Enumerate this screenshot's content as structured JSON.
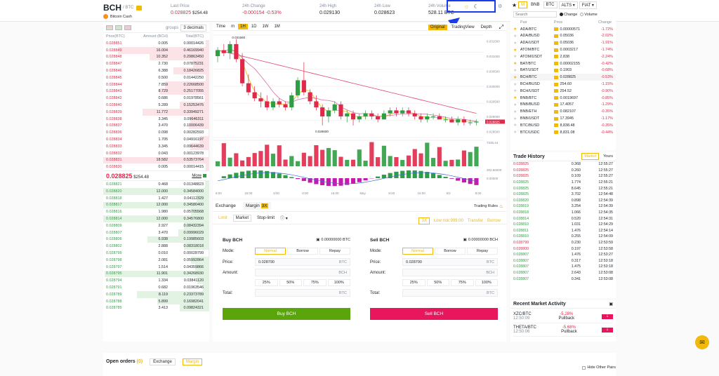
{
  "header": {
    "symbol": "BCH",
    "quote": "/ BTC",
    "name": "Bitcoin Cash",
    "last_price_label": "Last Price",
    "last_price": "0.028825",
    "last_price_usd": "$254.48",
    "change_label": "24h Change",
    "change_value": "-0.000154",
    "change_pct": "-0.53%",
    "high_label": "24h High",
    "high_value": "0.029130",
    "low_label": "24h Low",
    "low_value": "0.028623",
    "volume_label": "24h Volume",
    "volume_value": "528.11 BTC"
  },
  "orderbook": {
    "groups_label": "groups",
    "decimals": "3 decimals",
    "col_price": "Price(BTC)",
    "col_amount": "Amount (BCH)",
    "col_total": "Total(BTC)",
    "asks": [
      [
        "0.028851",
        "0.005",
        "0.00014426"
      ],
      [
        "0.028849",
        "16.004",
        "0.46169940"
      ],
      [
        "0.028848",
        "10.352",
        "0.29863450"
      ],
      [
        "0.028847",
        "2.730",
        "0.07875231"
      ],
      [
        "0.028846",
        "6.388",
        "0.18426825"
      ],
      [
        "0.028845",
        "0.500",
        "0.01442250"
      ],
      [
        "0.028844",
        "7.859",
        "0.22668500"
      ],
      [
        "0.028843",
        "8.729",
        "0.25177055"
      ],
      [
        "0.028842",
        "0.686",
        "0.01978561"
      ],
      [
        "0.028840",
        "5.289",
        "0.15253476"
      ],
      [
        "0.028839",
        "11.772",
        "0.33949271"
      ],
      [
        "0.028838",
        "3.345",
        "0.09646311"
      ],
      [
        "0.028837",
        "3.470",
        "0.10006439"
      ],
      [
        "0.028836",
        "0.098",
        "0.00282593"
      ],
      [
        "0.028834",
        "1.705",
        "0.04916197"
      ],
      [
        "0.028833",
        "3.345",
        "0.09644639"
      ],
      [
        "0.028832",
        "0.043",
        "0.00123978"
      ],
      [
        "0.028831",
        "18.582",
        "0.53573764"
      ],
      [
        "0.028830",
        "0.005",
        "0.00014415"
      ]
    ],
    "ask_depth": [
      0.03,
      0.86,
      0.56,
      0.15,
      0.34,
      0.03,
      0.42,
      0.47,
      0.04,
      0.28,
      0.63,
      0.18,
      0.19,
      0.01,
      0.09,
      0.18,
      0.01,
      1.0,
      0.03
    ],
    "mid_price": "0.028825",
    "mid_usd": "$254.48",
    "more_label": "More",
    "bids": [
      [
        "0.028821",
        "0.468",
        "0.01348823"
      ],
      [
        "0.028820",
        "12.000",
        "0.34584000"
      ],
      [
        "0.028818",
        "1.427",
        "0.04112329"
      ],
      [
        "0.028817",
        "12.000",
        "0.34580400"
      ],
      [
        "0.028816",
        "1.980",
        "0.05705568"
      ],
      [
        "0.028814",
        "12.000",
        "0.34576800"
      ],
      [
        "0.028809",
        "2.927",
        "0.08432394"
      ],
      [
        "0.028807",
        "3.470",
        "0.09996029"
      ],
      [
        "0.028806",
        "6.938",
        "0.19985603"
      ],
      [
        "0.028802",
        "2.888",
        "0.08318018"
      ],
      [
        "0.028799",
        "0.010",
        "0.00028799"
      ],
      [
        "0.028798",
        "2.081",
        "0.05992864"
      ],
      [
        "0.028797",
        "1.514",
        "0.04359866"
      ],
      [
        "0.028795",
        "11.901",
        "0.34268930"
      ],
      [
        "0.028794",
        "1.334",
        "0.03841120"
      ],
      [
        "0.028791",
        "0.682",
        "0.01963546"
      ],
      [
        "0.028789",
        "8.119",
        "0.23373789"
      ],
      [
        "0.028788",
        "5.899",
        "0.16982041"
      ],
      [
        "0.028785",
        "3.413",
        "0.09824321"
      ]
    ],
    "bid_depth": [
      0.04,
      1.0,
      0.12,
      1.0,
      0.17,
      1.0,
      0.24,
      0.29,
      0.58,
      0.24,
      0.01,
      0.17,
      0.13,
      0.99,
      0.11,
      0.06,
      0.68,
      0.49,
      0.28
    ]
  },
  "chart": {
    "toolbar": [
      "Time",
      "m",
      "1H",
      "1D",
      "1W",
      "1M"
    ],
    "active_interval": "1H",
    "views": [
      "Original",
      "TradingView",
      "Depth"
    ],
    "price_axis": [
      "0.031500",
      "0.031000",
      "0.030500",
      "0.030000",
      "0.029500",
      "0.029000",
      "0.028500"
    ],
    "vol_axis": [
      "7336.44"
    ],
    "macd_axis": [
      "302.56000",
      "0.00000"
    ],
    "x_axis": [
      "8:00",
      "16:00",
      "4/30",
      "8:00",
      "16:00",
      "May",
      "8:00",
      "16:00",
      "5/2",
      "8:00"
    ],
    "high_label": "0.031560",
    "low_label": "0.028600",
    "last_label": "0.028825"
  },
  "chart_data": {
    "type": "candlestick",
    "ylim": [
      0.0283,
      0.0317
    ],
    "candles": [
      [
        0.031,
        0.0313,
        0.0308,
        0.0312
      ],
      [
        0.0312,
        0.0314,
        0.031,
        0.0311
      ],
      [
        0.0311,
        0.0315,
        0.0309,
        0.0314
      ],
      [
        0.0314,
        0.03156,
        0.0308,
        0.0309
      ],
      [
        0.0309,
        0.0311,
        0.03,
        0.0301
      ],
      [
        0.0301,
        0.0304,
        0.0297,
        0.0298
      ],
      [
        0.0298,
        0.03,
        0.0295,
        0.0296
      ],
      [
        0.0296,
        0.0298,
        0.0293,
        0.0295
      ],
      [
        0.0295,
        0.0297,
        0.0292,
        0.0293
      ],
      [
        0.0293,
        0.0296,
        0.0292,
        0.0295
      ],
      [
        0.0295,
        0.0296,
        0.0293,
        0.0294
      ],
      [
        0.0294,
        0.0295,
        0.0292,
        0.0293
      ],
      [
        0.0293,
        0.0298,
        0.0292,
        0.0297
      ],
      [
        0.0297,
        0.0303,
        0.0296,
        0.0302
      ],
      [
        0.0302,
        0.0308,
        0.0297,
        0.0298
      ],
      [
        0.0298,
        0.0299,
        0.0294,
        0.0295
      ],
      [
        0.0295,
        0.0297,
        0.0292,
        0.0293
      ],
      [
        0.0293,
        0.0294,
        0.0287,
        0.029
      ],
      [
        0.029,
        0.0293,
        0.0288,
        0.0292
      ],
      [
        0.0292,
        0.0295,
        0.0291,
        0.0294
      ],
      [
        0.0294,
        0.0295,
        0.0289,
        0.029
      ],
      [
        0.029,
        0.0292,
        0.0288,
        0.0291
      ],
      [
        0.0291,
        0.0292,
        0.0287,
        0.0289
      ],
      [
        0.0289,
        0.0291,
        0.0288,
        0.029
      ],
      [
        0.029,
        0.0292,
        0.0289,
        0.0291
      ],
      [
        0.0291,
        0.0292,
        0.0289,
        0.029
      ],
      [
        0.029,
        0.0291,
        0.0288,
        0.0289
      ],
      [
        0.0289,
        0.0292,
        0.0289,
        0.0291
      ],
      [
        0.0291,
        0.0293,
        0.029,
        0.0292
      ],
      [
        0.0292,
        0.0293,
        0.029,
        0.0291
      ],
      [
        0.0291,
        0.0293,
        0.029,
        0.0292
      ],
      [
        0.0292,
        0.0293,
        0.029,
        0.0291
      ],
      [
        0.0291,
        0.0292,
        0.0289,
        0.029
      ],
      [
        0.029,
        0.0291,
        0.0288,
        0.0289
      ],
      [
        0.0289,
        0.0291,
        0.0288,
        0.029
      ],
      [
        0.029,
        0.0291,
        0.0289,
        0.029
      ],
      [
        0.029,
        0.0291,
        0.0289,
        0.0289
      ],
      [
        0.0289,
        0.029,
        0.0288,
        0.0289
      ],
      [
        0.0289,
        0.029,
        0.0288,
        0.0288
      ],
      [
        0.0288,
        0.029,
        0.0287,
        0.0289
      ],
      [
        0.0289,
        0.029,
        0.0287,
        0.0288
      ],
      [
        0.0288,
        0.0289,
        0.0287,
        0.0288
      ],
      [
        0.0288,
        0.0289,
        0.0287,
        0.02883
      ]
    ]
  },
  "form": {
    "tab_exchange": "Exchange",
    "tab_margin": "Margin",
    "margin_badge": "3X",
    "trading_rules": "Trading Rules",
    "order_types": [
      "Limit",
      "Market",
      "Stop-limit"
    ],
    "leverage": "3X",
    "low_risk": "Low risk:999.00",
    "transfer": "Transfer",
    "borrow": "Borrow",
    "buy": {
      "title": "Buy BCH",
      "balance": "0.00000000 BTC",
      "mode_label": "Mode:",
      "modes": [
        "Normal",
        "Borrow",
        "Repay"
      ],
      "price_label": "Price:",
      "price": "0.028790",
      "price_unit": "BTC",
      "amount_label": "Amount:",
      "amount_unit": "BCH",
      "pcts": [
        "25%",
        "50%",
        "75%",
        "100%"
      ],
      "total_label": "Total:",
      "total_unit": "BTC",
      "button": "Buy BCH"
    },
    "sell": {
      "title": "Sell BCH",
      "balance": "0.00000000 BCH",
      "mode_label": "Mode:",
      "modes": [
        "Normal",
        "Borrow",
        "Repay"
      ],
      "price_label": "Price:",
      "price": "0.028790",
      "price_unit": "BTC",
      "amount_label": "Amount:",
      "amount_unit": "BCH",
      "pcts": [
        "25%",
        "50%",
        "75%",
        "100%"
      ],
      "total_label": "Total:",
      "total_unit": "BTC",
      "button": "Sell BCH"
    }
  },
  "markets": {
    "tabs": [
      "M",
      "BNB",
      "BTC",
      "ALTS",
      "FIAT"
    ],
    "search_placeholder": "Search",
    "change_label": "Change",
    "volume_label": "Volume",
    "col_pair": "Pair",
    "col_price": "Price",
    "col_change": "Change",
    "rows": [
      [
        "ADA/BTC",
        "0.00000571",
        "-1.72%",
        true
      ],
      [
        "ADA/BUSD",
        "0.05036",
        "-2.02%",
        false
      ],
      [
        "ADA/USDT",
        "0.05036",
        "-1.91%",
        false
      ],
      [
        "ATOM/BTC",
        "0.0003217",
        "-1.74%",
        true
      ],
      [
        "ATOM/USDT",
        "2.838",
        "-2.24%",
        false
      ],
      [
        "BAT/BTC",
        "0.00002155",
        "-0.42%",
        true
      ],
      [
        "BAT/USDT",
        "0.1903",
        "-0.68%",
        false
      ],
      [
        "BCH/BTC",
        "0.028825",
        "-0.53%",
        true
      ],
      [
        "BCH/BUSD",
        "254.60",
        "-1.15%",
        false
      ],
      [
        "BCH/USDT",
        "254.52",
        "-0.90%",
        false
      ],
      [
        "BNB/BTC",
        "0.0019697",
        "-0.85%",
        true
      ],
      [
        "BNB/BUSD",
        "17.4057",
        "-1.29%",
        false
      ],
      [
        "BNB/ETH",
        "0.082107",
        "-0.35%",
        false
      ],
      [
        "BNB/USDT",
        "17.3945",
        "-1.17%",
        false
      ],
      [
        "BTC/BUSD",
        "8,838.48",
        "-0.35%",
        false
      ],
      [
        "BTC/USDC",
        "8,831.08",
        "-0.44%",
        false
      ]
    ]
  },
  "trade_history": {
    "title": "Trade History",
    "tab_market": "Market",
    "tab_yours": "Yours",
    "rows": [
      [
        "0.028825",
        "0.368",
        "12:55:27",
        "r"
      ],
      [
        "0.028825",
        "0.260",
        "12:55:27",
        "r"
      ],
      [
        "0.028825",
        "0.109",
        "12:55:27",
        "r"
      ],
      [
        "0.028825",
        "1.774",
        "12:55:21",
        "g"
      ],
      [
        "0.028825",
        "8.645",
        "12:55:21",
        "g"
      ],
      [
        "0.028825",
        "3.702",
        "12:54:48",
        "g"
      ],
      [
        "0.028820",
        "0.898",
        "12:54:39",
        "g"
      ],
      [
        "0.028819",
        "3.254",
        "12:54:39",
        "g"
      ],
      [
        "0.028818",
        "1.066",
        "12:54:35",
        "g"
      ],
      [
        "0.028814",
        "0.520",
        "12:54:31",
        "g"
      ],
      [
        "0.028810",
        "1.031",
        "12:54:29",
        "g"
      ],
      [
        "0.028811",
        "1.476",
        "12:54:14",
        "g"
      ],
      [
        "0.028810",
        "0.255",
        "12:54:09",
        "g"
      ],
      [
        "0.028799",
        "0.230",
        "12:53:59",
        "r"
      ],
      [
        "0.028800",
        "0.197",
        "12:53:58",
        "r"
      ],
      [
        "0.028807",
        "1.476",
        "12:53:27",
        "g"
      ],
      [
        "0.028807",
        "0.317",
        "12:53:18",
        "g"
      ],
      [
        "0.028807",
        "1.475",
        "12:53:18",
        "g"
      ],
      [
        "0.028807",
        "2.643",
        "12:53:08",
        "g"
      ],
      [
        "0.028807",
        "0.341",
        "12:53:08",
        "g"
      ]
    ]
  },
  "recent_activity": {
    "title": "Recent Market Activity",
    "items": [
      {
        "pair": "XZC/BTC",
        "time": "12:50:09",
        "change": "-5.28%",
        "label": "Pullback"
      },
      {
        "pair": "THETA/BTC",
        "time": "12:50:06",
        "change": "-5.68%",
        "label": "Pullback"
      }
    ]
  },
  "open_orders": {
    "title": "Open orders",
    "count": "(0)",
    "tab_exchange": "Exchange",
    "tab_margin": "Margin",
    "hide_label": "Hide Other Pairs"
  },
  "colors": {
    "up": "#2e9e44",
    "down": "#e0294a",
    "accent": "#f0b90b",
    "highlight_box": "#1a3be8"
  }
}
